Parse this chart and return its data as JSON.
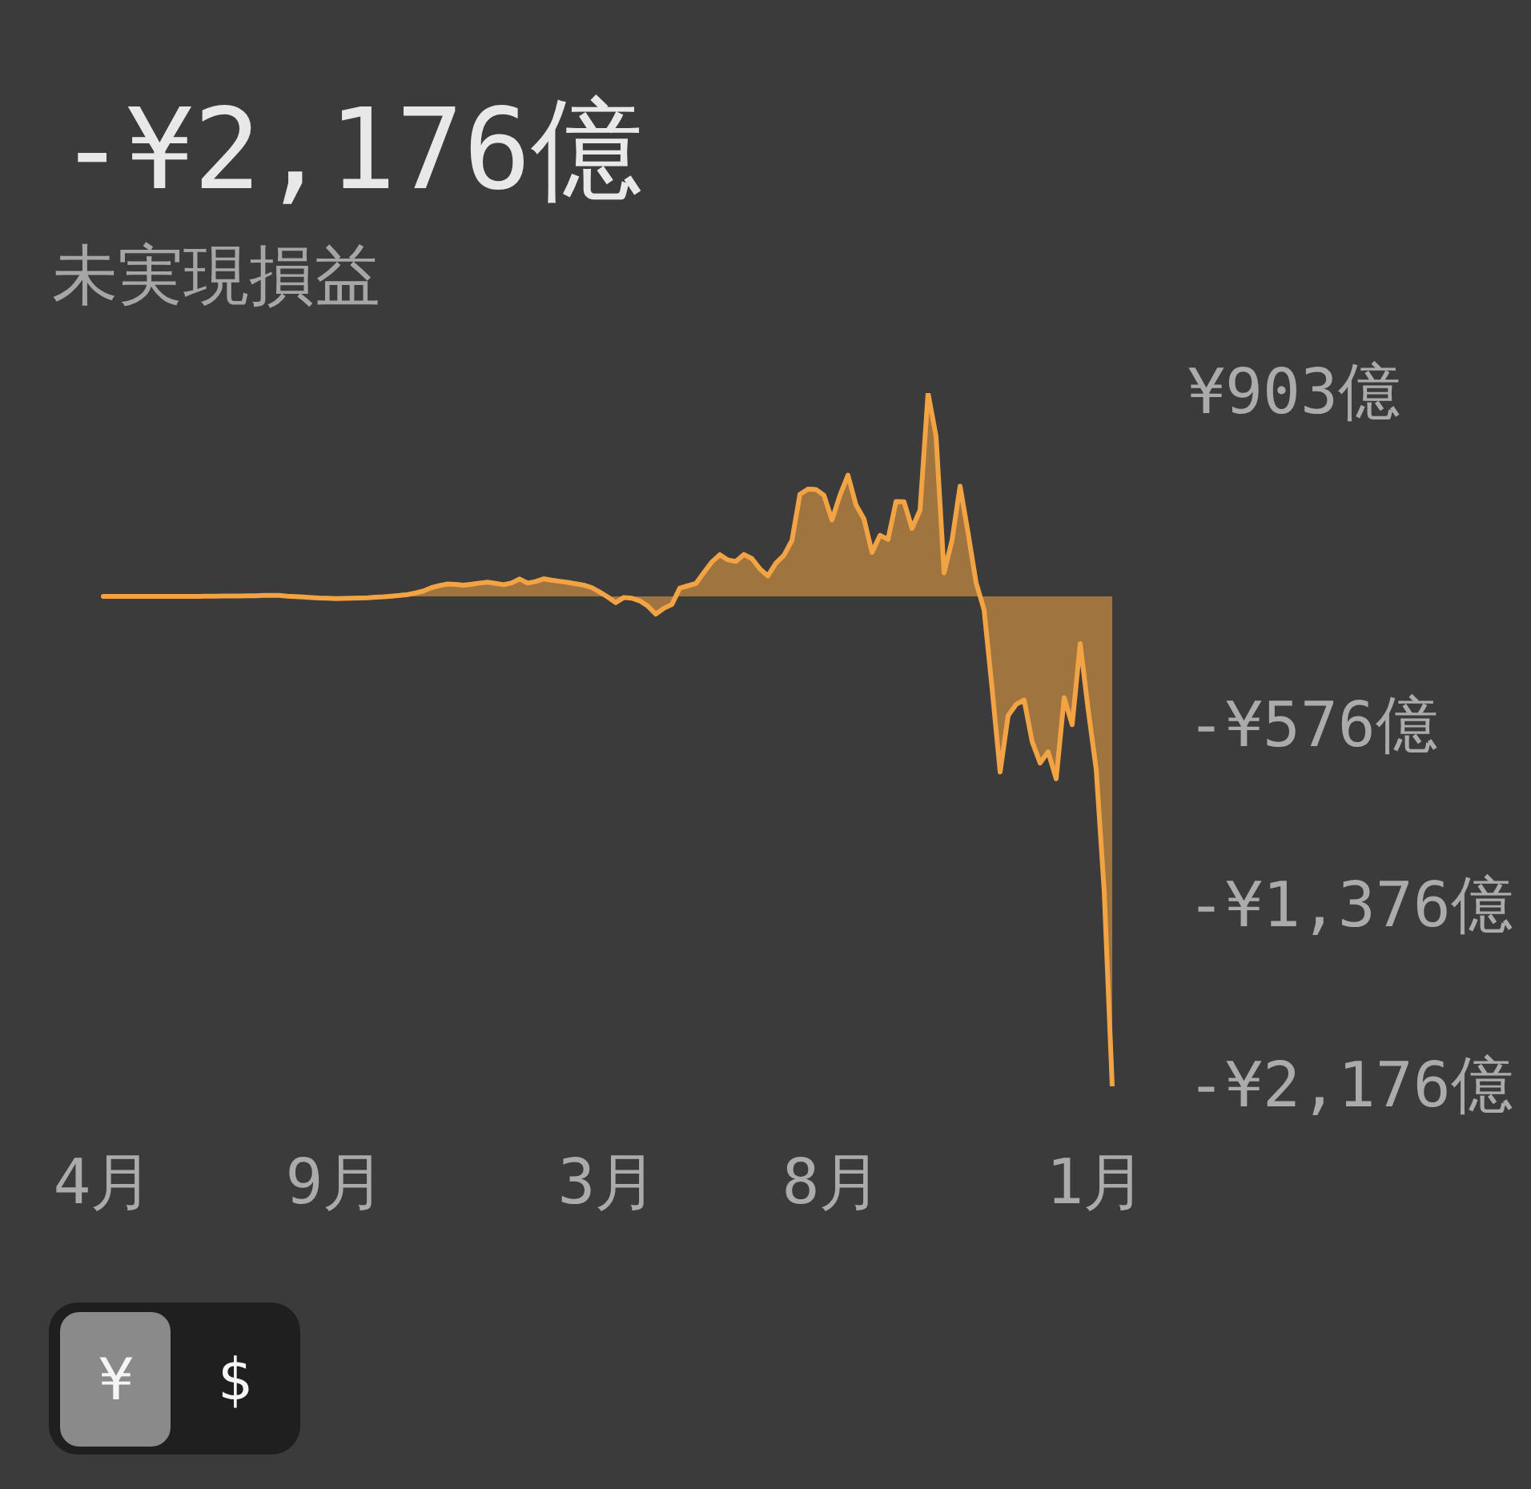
{
  "chart_data": {
    "type": "area",
    "title": "-¥2,176億",
    "subtitle": "未実現損益",
    "categories": [
      "4月",
      null,
      null,
      null,
      null,
      null,
      null,
      null,
      null,
      null,
      null,
      null,
      null,
      null,
      null,
      null,
      null,
      null,
      null,
      null,
      null,
      null,
      null,
      null,
      null,
      null,
      null,
      null,
      null,
      "9月",
      null,
      null,
      null,
      null,
      null,
      null,
      null,
      null,
      null,
      null,
      null,
      null,
      null,
      null,
      null,
      null,
      null,
      null,
      null,
      null,
      null,
      null,
      null,
      null,
      null,
      null,
      null,
      null,
      null,
      null,
      null,
      null,
      null,
      "3月",
      null,
      null,
      null,
      null,
      null,
      null,
      null,
      null,
      null,
      null,
      null,
      null,
      null,
      null,
      null,
      null,
      null,
      null,
      null,
      null,
      null,
      null,
      null,
      null,
      null,
      null,
      null,
      "8月",
      null,
      null,
      null,
      null,
      null,
      null,
      null,
      null,
      null,
      null,
      null,
      null,
      null,
      null,
      null,
      null,
      null,
      null,
      null,
      null,
      null,
      null,
      null,
      null,
      null,
      null,
      null,
      null,
      null,
      null,
      null,
      null,
      "1月",
      null,
      null
    ],
    "values": [
      0,
      0,
      0,
      0,
      0,
      0,
      0,
      0,
      0,
      0,
      0,
      0,
      0,
      1,
      1,
      2,
      2,
      2,
      3,
      3,
      4,
      4,
      4,
      1,
      -1,
      -3,
      -5,
      -7,
      -8,
      -10,
      -9,
      -8,
      -7,
      -6,
      -4,
      -2,
      1,
      4,
      8,
      15,
      24,
      39,
      48,
      55,
      53,
      50,
      54,
      59,
      63,
      58,
      52,
      60,
      77,
      59,
      66,
      78,
      72,
      67,
      62,
      56,
      50,
      39,
      19,
      -3,
      -28,
      -5,
      -8,
      -20,
      -43,
      -79,
      -53,
      -36,
      37,
      47,
      57,
      106,
      153,
      185,
      162,
      155,
      186,
      168,
      122,
      91,
      148,
      182,
      248,
      453,
      476,
      475,
      449,
      339,
      449,
      538,
      406,
      344,
      195,
      271,
      253,
      421,
      420,
      302,
      383,
      903,
      711,
      105,
      250,
      490,
      281,
      61,
      -60,
      -410,
      -780,
      -530,
      -480,
      -460,
      -645,
      -740,
      -690,
      -810,
      -450,
      -570,
      -210,
      -504,
      -768,
      -1310,
      -2176
    ],
    "color": "#f2a444",
    "ylim": [
      -2176,
      903
    ],
    "yticks": [
      {
        "value": 903,
        "label": "¥903億"
      },
      {
        "value": -576,
        "label": "-¥576億"
      },
      {
        "value": -1376,
        "label": "-¥1,376億"
      },
      {
        "value": -2176,
        "label": "-¥2,176億"
      }
    ],
    "annotations": [
      "¥",
      "$"
    ]
  }
}
